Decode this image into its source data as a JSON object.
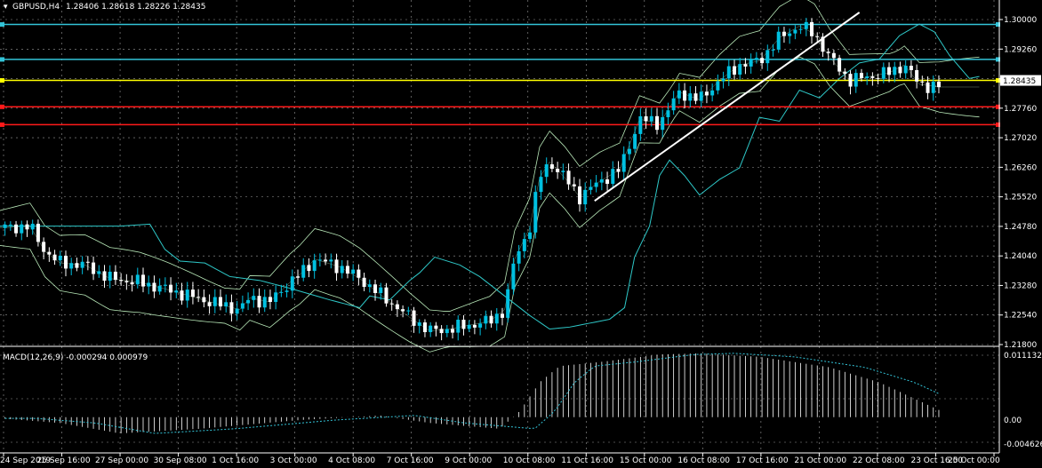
{
  "header": {
    "symbol_timeframe": "GBPUSD,H4",
    "ohlc": "1.28406 1.28618 1.28226 1.28435"
  },
  "macd": {
    "title": "MACD(12,26,9) -0.000294 0.000979",
    "axis": [
      "0.011132",
      "0.00",
      "-0.004626"
    ]
  },
  "price_axis": [
    "1.30000",
    "1.29260",
    "1.28435",
    "1.27760",
    "1.27020",
    "1.26260",
    "1.25520",
    "1.24780",
    "1.24040",
    "1.23280",
    "1.22540",
    "1.21800"
  ],
  "current_price": "1.28435",
  "time_axis": [
    "24 Sep 2019",
    "25 Sep 16:00",
    "27 Sep 00:00",
    "30 Sep 08:00",
    "1 Oct 16:00",
    "3 Oct 00:00",
    "4 Oct 08:00",
    "7 Oct 16:00",
    "9 Oct 00:00",
    "10 Oct 08:00",
    "11 Oct 16:00",
    "15 Oct 00:00",
    "16 Oct 08:00",
    "17 Oct 16:00",
    "21 Oct 00:00",
    "22 Oct 08:00",
    "23 Oct 16:00",
    "25 Oct 00:00"
  ],
  "colors": {
    "bull": "#00c0e0",
    "bear": "#ffffff",
    "grid": "#9a9a9a",
    "level_cyan": "#33c4d8",
    "level_yellow": "#ffff00",
    "level_red": "#ff1a1a",
    "bands": "#b8e8b8",
    "ma": "#2ec8c8",
    "trendline": "#ffffff"
  },
  "chart_data": {
    "type": "candlestick",
    "y_range": [
      1.218,
      1.3035
    ],
    "levels": [
      {
        "price": 1.3004,
        "color": "cyan"
      },
      {
        "price": 1.2914,
        "color": "cyan"
      },
      {
        "price": 1.286,
        "color": "yellow"
      },
      {
        "price": 1.2792,
        "color": "red"
      },
      {
        "price": 1.2746,
        "color": "red"
      }
    ],
    "trendline": {
      "from": [
        0.595,
        1.255
      ],
      "to": [
        0.86,
        1.3035
      ]
    },
    "price_path": [
      [
        0.0,
        1.248
      ],
      [
        0.03,
        1.2485
      ],
      [
        0.045,
        1.242
      ],
      [
        0.06,
        1.239
      ],
      [
        0.085,
        1.2385
      ],
      [
        0.11,
        1.235
      ],
      [
        0.14,
        1.234
      ],
      [
        0.17,
        1.232
      ],
      [
        0.21,
        1.229
      ],
      [
        0.24,
        1.227
      ],
      [
        0.25,
        1.23
      ],
      [
        0.27,
        1.229
      ],
      [
        0.29,
        1.234
      ],
      [
        0.3,
        1.236
      ],
      [
        0.315,
        1.24
      ],
      [
        0.34,
        1.238
      ],
      [
        0.36,
        1.235
      ],
      [
        0.38,
        1.231
      ],
      [
        0.41,
        1.225
      ],
      [
        0.43,
        1.2215
      ],
      [
        0.45,
        1.222
      ],
      [
        0.47,
        1.223
      ],
      [
        0.49,
        1.224
      ],
      [
        0.505,
        1.227
      ],
      [
        0.515,
        1.24
      ],
      [
        0.53,
        1.248
      ],
      [
        0.54,
        1.261
      ],
      [
        0.55,
        1.265
      ],
      [
        0.565,
        1.261
      ],
      [
        0.58,
        1.256
      ],
      [
        0.6,
        1.26
      ],
      [
        0.62,
        1.263
      ],
      [
        0.64,
        1.276
      ],
      [
        0.66,
        1.275
      ],
      [
        0.68,
        1.283
      ],
      [
        0.7,
        1.281
      ],
      [
        0.72,
        1.286
      ],
      [
        0.74,
        1.29
      ],
      [
        0.76,
        1.291
      ],
      [
        0.78,
        1.297
      ],
      [
        0.8,
        1.3
      ],
      [
        0.815,
        1.298
      ],
      [
        0.83,
        1.292
      ],
      [
        0.85,
        1.286
      ],
      [
        0.87,
        1.287
      ],
      [
        0.89,
        1.288
      ],
      [
        0.905,
        1.29
      ],
      [
        0.92,
        1.285
      ],
      [
        0.94,
        1.2843
      ]
    ],
    "macd_path": [
      [
        0.0,
        -0.0002
      ],
      [
        0.06,
        -0.001
      ],
      [
        0.12,
        -0.0028
      ],
      [
        0.2,
        -0.002
      ],
      [
        0.3,
        -0.0005
      ],
      [
        0.38,
        0.0003
      ],
      [
        0.43,
        -0.001
      ],
      [
        0.5,
        -0.002
      ],
      [
        0.52,
        0.001
      ],
      [
        0.54,
        0.006
      ],
      [
        0.56,
        0.0088
      ],
      [
        0.6,
        0.0095
      ],
      [
        0.66,
        0.0108
      ],
      [
        0.7,
        0.011
      ],
      [
        0.76,
        0.0104
      ],
      [
        0.83,
        0.0086
      ],
      [
        0.88,
        0.006
      ],
      [
        0.94,
        0.0012
      ]
    ]
  }
}
